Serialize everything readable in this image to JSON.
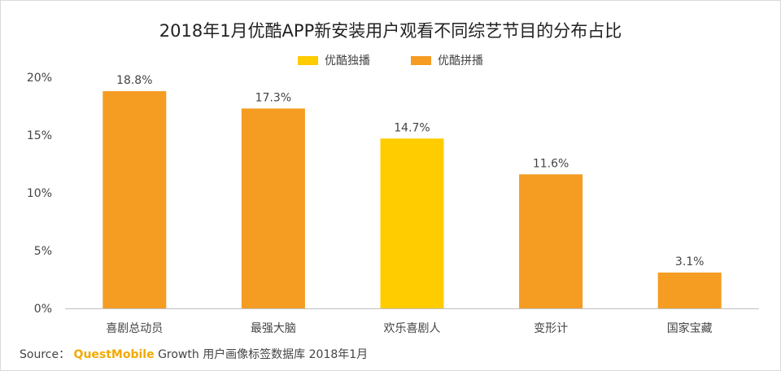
{
  "chart_data": {
    "type": "bar",
    "title": "2018年1月优酷APP新安装用户观看不同综艺节目的分布占比",
    "xlabel": "",
    "ylabel": "",
    "categories": [
      "喜剧总动员",
      "最强大脑",
      "欢乐喜剧人",
      "变形计",
      "国家宝藏"
    ],
    "values": [
      18.8,
      17.3,
      14.7,
      11.6,
      3.1
    ],
    "data_labels": [
      "18.8%",
      "17.3%",
      "14.7%",
      "11.6%",
      "3.1%"
    ],
    "bar_series": [
      "优酷拼播",
      "优酷拼播",
      "优酷独播",
      "优酷拼播",
      "优酷拼播"
    ],
    "ylim": [
      0,
      20
    ],
    "yticks": [
      0,
      5,
      10,
      15,
      20
    ],
    "ytick_labels": [
      "0%",
      "5%",
      "10%",
      "15%",
      "20%"
    ],
    "grid": false,
    "legend_position": "top-center",
    "legend": [
      {
        "name": "优酷独播",
        "color": "#ffcc00"
      },
      {
        "name": "优酷拼播",
        "color": "#f59c23"
      }
    ]
  },
  "source": {
    "prefix": "Source：",
    "brand": "QuestMobile",
    "suffix": " Growth 用户画像标签数据库 2018年1月"
  }
}
